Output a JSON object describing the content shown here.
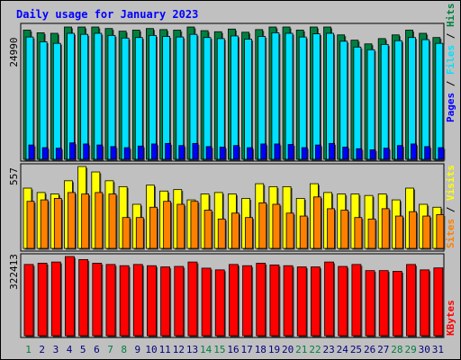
{
  "title": "Daily usage for January 2023",
  "colors": {
    "background": "#c0c0c0",
    "hits": "#008040",
    "files": "#00e0ff",
    "pages": "#0000ff",
    "visits": "#ffff00",
    "sites": "#ff8000",
    "kbytes": "#ff0000",
    "title": "#0000ff",
    "weekend_label": "#008040",
    "weekday_label": "#000080"
  },
  "chart_data": [
    {
      "type": "bar",
      "name": "hits-files-pages",
      "y_max_label": "24990",
      "ylim": [
        0,
        24990
      ],
      "legend": [
        {
          "text": "Hits",
          "color": "#008040"
        },
        {
          "text": "Files",
          "color": "#00e0ff"
        },
        {
          "text": "Pages",
          "color": "#0000ff"
        }
      ],
      "categories": [
        "1",
        "2",
        "3",
        "4",
        "5",
        "6",
        "7",
        "8",
        "9",
        "10",
        "11",
        "12",
        "13",
        "14",
        "15",
        "16",
        "17",
        "18",
        "19",
        "20",
        "21",
        "22",
        "23",
        "24",
        "25",
        "26",
        "27",
        "28",
        "29",
        "30",
        "31"
      ],
      "series": [
        {
          "name": "Hits",
          "values": [
            24400,
            23900,
            23800,
            24990,
            24990,
            24990,
            24700,
            24200,
            24400,
            24700,
            24500,
            24400,
            24990,
            24300,
            24100,
            24600,
            24000,
            24500,
            24990,
            24990,
            24400,
            24990,
            24990,
            23500,
            22500,
            21800,
            22800,
            23500,
            24400,
            23800,
            23000
          ]
        },
        {
          "name": "Files",
          "values": [
            23100,
            22200,
            21900,
            23800,
            23600,
            23800,
            23400,
            22900,
            23000,
            23400,
            23200,
            23100,
            23600,
            23000,
            22800,
            23300,
            22700,
            23200,
            23900,
            23800,
            23100,
            23700,
            23800,
            22300,
            21200,
            20700,
            21700,
            22400,
            23000,
            22600,
            21900
          ]
        },
        {
          "name": "Pages",
          "values": [
            2700,
            2200,
            2100,
            3100,
            2900,
            2700,
            2400,
            2200,
            2500,
            2900,
            3000,
            2600,
            3000,
            2400,
            2300,
            2600,
            2200,
            2900,
            2900,
            2800,
            2200,
            2700,
            3000,
            2300,
            2000,
            1800,
            2100,
            2600,
            2900,
            2400,
            2200
          ]
        }
      ]
    },
    {
      "type": "bar",
      "name": "visits-sites",
      "y_max_label": "557",
      "ylim": [
        0,
        557
      ],
      "legend": [
        {
          "text": "Visits",
          "color": "#ffff00"
        },
        {
          "text": "Sites",
          "color": "#ff8000"
        }
      ],
      "categories": [
        "1",
        "2",
        "3",
        "4",
        "5",
        "6",
        "7",
        "8",
        "9",
        "10",
        "11",
        "12",
        "13",
        "14",
        "15",
        "16",
        "17",
        "18",
        "19",
        "20",
        "21",
        "22",
        "23",
        "24",
        "25",
        "26",
        "27",
        "28",
        "29",
        "30",
        "31"
      ],
      "series": [
        {
          "name": "Visits",
          "values": [
            410,
            380,
            370,
            460,
            557,
            520,
            460,
            420,
            300,
            430,
            390,
            400,
            330,
            370,
            380,
            370,
            340,
            440,
            420,
            420,
            340,
            440,
            380,
            370,
            370,
            360,
            370,
            330,
            410,
            300,
            280
          ]
        },
        {
          "name": "Sites",
          "values": [
            320,
            330,
            340,
            380,
            370,
            380,
            370,
            210,
            210,
            280,
            320,
            300,
            320,
            260,
            200,
            240,
            210,
            310,
            300,
            240,
            220,
            350,
            270,
            260,
            210,
            200,
            270,
            220,
            250,
            220,
            230
          ]
        }
      ]
    },
    {
      "type": "bar",
      "name": "kbytes",
      "y_max_label": "322413",
      "ylim": [
        0,
        322413
      ],
      "legend": [
        {
          "text": "KBytes",
          "color": "#ff0000"
        }
      ],
      "categories": [
        "1",
        "2",
        "3",
        "4",
        "5",
        "6",
        "7",
        "8",
        "9",
        "10",
        "11",
        "12",
        "13",
        "14",
        "15",
        "16",
        "17",
        "18",
        "19",
        "20",
        "21",
        "22",
        "23",
        "24",
        "25",
        "26",
        "27",
        "28",
        "29",
        "30",
        "31"
      ],
      "series": [
        {
          "name": "KBytes",
          "values": [
            290000,
            295000,
            300000,
            322413,
            310000,
            295000,
            290000,
            285000,
            290000,
            285000,
            280000,
            282000,
            300000,
            275000,
            268000,
            290000,
            285000,
            295000,
            288000,
            285000,
            280000,
            280000,
            300000,
            282000,
            290000,
            265000,
            265000,
            262000,
            290000,
            268000,
            276000
          ]
        }
      ]
    }
  ],
  "x_labels": [
    {
      "text": "1",
      "weekend": true
    },
    {
      "text": "2",
      "weekend": false
    },
    {
      "text": "3",
      "weekend": false
    },
    {
      "text": "4",
      "weekend": false
    },
    {
      "text": "5",
      "weekend": false
    },
    {
      "text": "6",
      "weekend": false
    },
    {
      "text": "7",
      "weekend": true
    },
    {
      "text": "8",
      "weekend": true
    },
    {
      "text": "9",
      "weekend": false
    },
    {
      "text": "10",
      "weekend": false
    },
    {
      "text": "11",
      "weekend": false
    },
    {
      "text": "12",
      "weekend": false
    },
    {
      "text": "13",
      "weekend": false
    },
    {
      "text": "14",
      "weekend": true
    },
    {
      "text": "15",
      "weekend": true
    },
    {
      "text": "16",
      "weekend": false
    },
    {
      "text": "17",
      "weekend": false
    },
    {
      "text": "18",
      "weekend": false
    },
    {
      "text": "19",
      "weekend": false
    },
    {
      "text": "20",
      "weekend": false
    },
    {
      "text": "21",
      "weekend": true
    },
    {
      "text": "22",
      "weekend": true
    },
    {
      "text": "23",
      "weekend": false
    },
    {
      "text": "24",
      "weekend": false
    },
    {
      "text": "25",
      "weekend": false
    },
    {
      "text": "26",
      "weekend": false
    },
    {
      "text": "27",
      "weekend": false
    },
    {
      "text": "28",
      "weekend": true
    },
    {
      "text": "29",
      "weekend": true
    },
    {
      "text": "30",
      "weekend": false
    },
    {
      "text": "31",
      "weekend": false
    }
  ]
}
